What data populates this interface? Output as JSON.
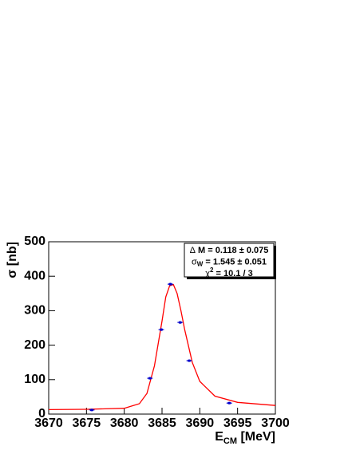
{
  "chart_data": {
    "type": "scatter",
    "y_label": "σ [nb]",
    "x_label": {
      "main": "E",
      "sub": "CM",
      "rest": " [MeV]"
    },
    "xlim": [
      3670,
      3700
    ],
    "ylim": [
      0,
      500
    ],
    "xticks": [
      3670,
      3675,
      3680,
      3685,
      3690,
      3695,
      3700
    ],
    "yticks": [
      0,
      100,
      200,
      300,
      400,
      500
    ],
    "points": {
      "color": "#0000cc",
      "x": [
        3675.7,
        3683.4,
        3684.9,
        3686.1,
        3687.4,
        3688.6,
        3693.9
      ],
      "values": [
        12,
        104,
        245,
        377,
        266,
        155,
        32
      ]
    },
    "fit": {
      "color": "#ff0000",
      "x": [
        3670,
        3675,
        3680,
        3682,
        3683,
        3684,
        3685,
        3685.5,
        3686,
        3686.5,
        3687,
        3687.5,
        3688,
        3689,
        3690,
        3692,
        3695,
        3700
      ],
      "values": [
        13,
        14,
        17,
        30,
        60,
        140,
        270,
        340,
        372,
        376,
        350,
        300,
        245,
        150,
        95,
        52,
        34,
        25
      ]
    },
    "stats": [
      {
        "symbol": "Δ",
        "sub": "",
        "text": " M = 0.118 ± 0.075"
      },
      {
        "symbol": "σ",
        "sub": "W",
        "text": " = 1.545 ± 0.051"
      },
      {
        "symbol": "χ",
        "sup": "2",
        "text": " = 10.1 / 3"
      }
    ]
  }
}
